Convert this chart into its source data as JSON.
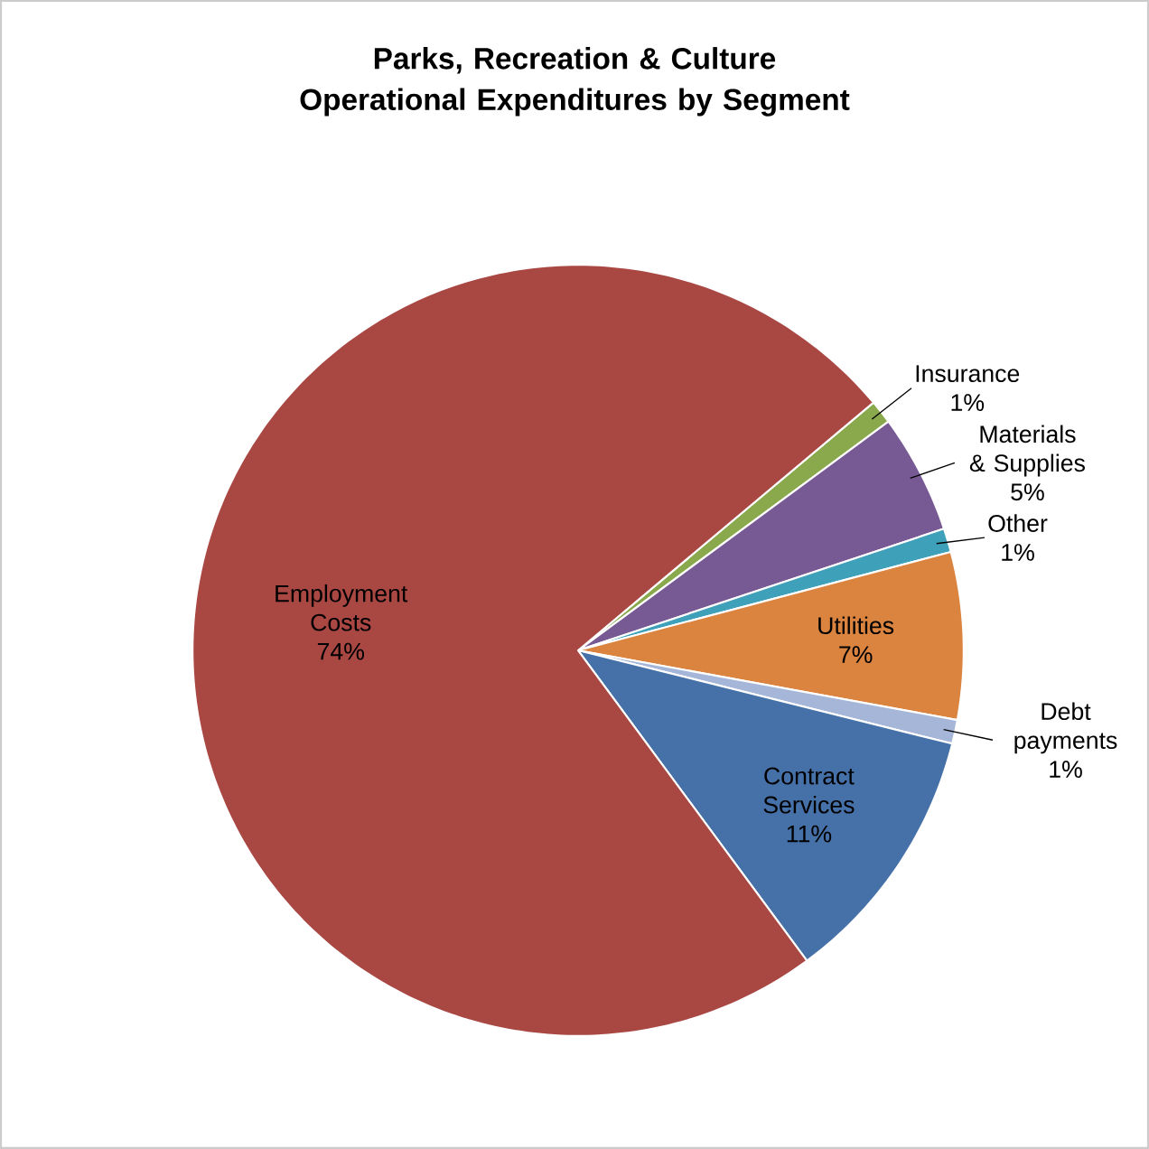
{
  "chart_data": {
    "type": "pie",
    "title": "Parks, Recreation & Culture Operational Expenditures by Segment",
    "categories": [
      "Insurance",
      "Materials & Supplies",
      "Other",
      "Utilities",
      "Debt payments",
      "Contract Services",
      "Employment Costs"
    ],
    "values": [
      1,
      5,
      1,
      7,
      1,
      11,
      74
    ],
    "value_labels": [
      "1%",
      "5%",
      "1%",
      "7%",
      "1%",
      "11%",
      "74%"
    ],
    "colors": [
      "#8aa84c",
      "#775a93",
      "#3fa0ba",
      "#db8440",
      "#a5b6d8",
      "#4571a8",
      "#a94743"
    ]
  }
}
